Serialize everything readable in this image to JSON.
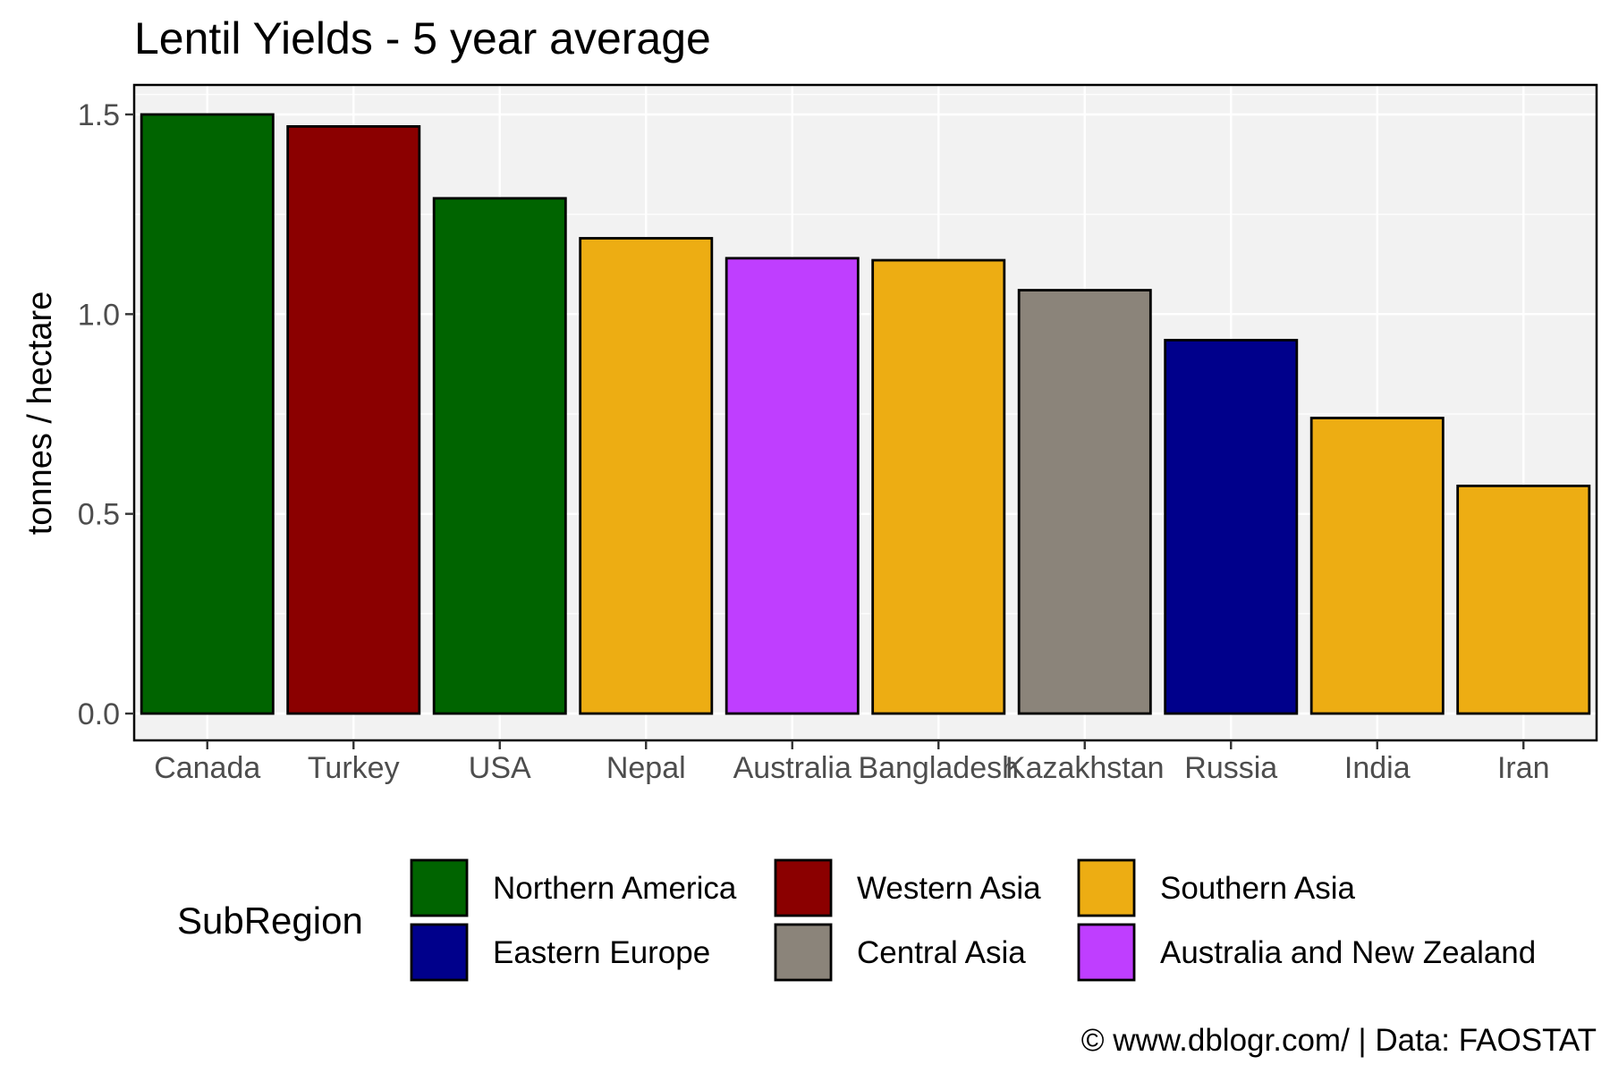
{
  "chart_data": {
    "type": "bar",
    "title": "Lentil Yields - 5 year average",
    "ylabel": "tonnes / hectare",
    "xlabel": "",
    "ylim": [
      0,
      1.6
    ],
    "yticks": [
      0.0,
      0.5,
      1.0,
      1.5
    ],
    "ytick_labels": [
      "0.0",
      "0.5",
      "1.0",
      "1.5"
    ],
    "grid": true,
    "categories": [
      "Canada",
      "Turkey",
      "USA",
      "Nepal",
      "Australia",
      "Bangladesh",
      "Kazakhstan",
      "Russia",
      "India",
      "Iran"
    ],
    "values": [
      1.5,
      1.47,
      1.29,
      1.19,
      1.14,
      1.135,
      1.06,
      0.935,
      0.74,
      0.57
    ],
    "subregion": [
      "Northern America",
      "Western Asia",
      "Northern America",
      "Southern Asia",
      "Australia and New Zealand",
      "Southern Asia",
      "Central Asia",
      "Eastern Europe",
      "Southern Asia",
      "Southern Asia"
    ],
    "legend": {
      "title": "SubRegion",
      "position": "bottom",
      "entries": [
        {
          "name": "Northern America",
          "color": "#006400"
        },
        {
          "name": "Western Asia",
          "color": "#8B0000"
        },
        {
          "name": "Southern Asia",
          "color": "#EDAD13"
        },
        {
          "name": "Eastern Europe",
          "color": "#00008B"
        },
        {
          "name": "Central Asia",
          "color": "#8B847A"
        },
        {
          "name": "Australia and New Zealand",
          "color": "#BF3EFF"
        }
      ]
    },
    "caption": "© www.dblogr.com/  |  Data: FAOSTAT"
  }
}
